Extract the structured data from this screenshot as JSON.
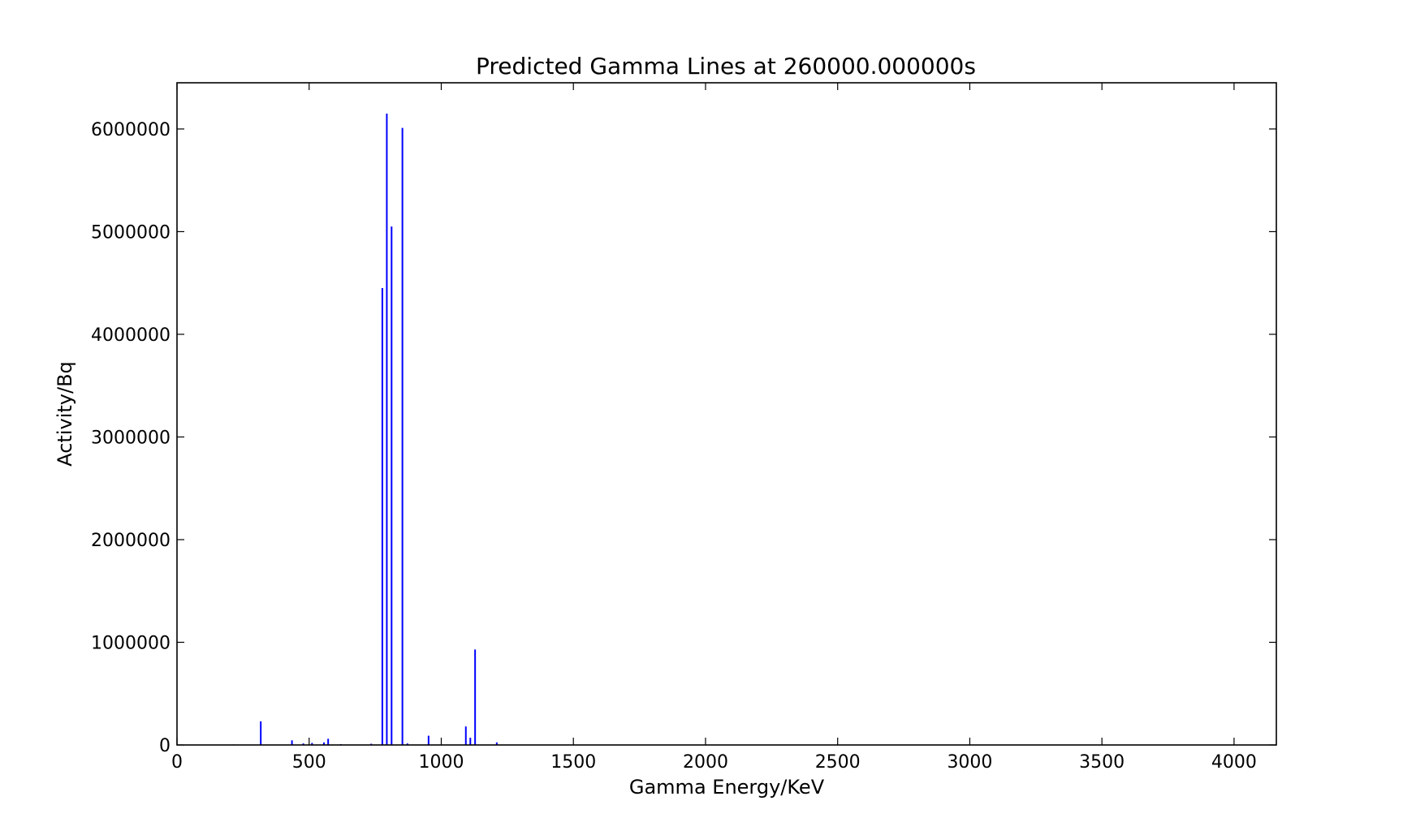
{
  "chart_data": {
    "type": "bar",
    "title": "Predicted Gamma Lines at 260000.000000s",
    "xlabel": "Gamma Energy/KeV",
    "ylabel": "Activity/Bq",
    "xlim": [
      0,
      4160
    ],
    "ylim": [
      0,
      6450000
    ],
    "xticks": [
      0,
      500,
      1000,
      1500,
      2000,
      2500,
      3000,
      3500,
      4000
    ],
    "yticks": [
      0,
      1000000,
      2000000,
      3000000,
      4000000,
      5000000,
      6000000
    ],
    "grid": false,
    "bar_color": "#0000ff",
    "series": [
      {
        "x": [
          215,
          317,
          435,
          478,
          511,
          556,
          572,
          620,
          735,
          777,
          794,
          812,
          853,
          872,
          952,
          1093,
          1110,
          1128,
          1210
        ],
        "values": [
          5000,
          230000,
          45000,
          15000,
          20000,
          25000,
          60000,
          8000,
          12000,
          4450000,
          6150000,
          5050000,
          6010000,
          15000,
          90000,
          180000,
          70000,
          930000,
          25000
        ]
      }
    ]
  }
}
